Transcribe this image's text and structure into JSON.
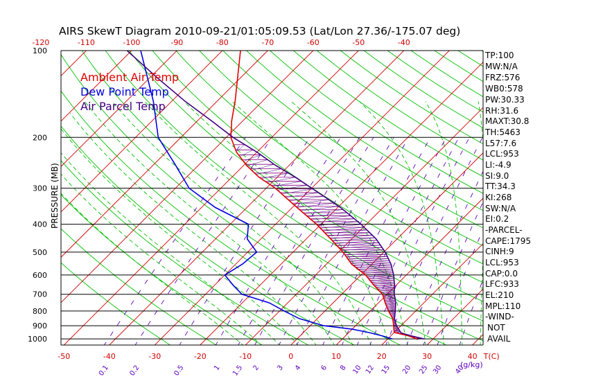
{
  "title": "AIRS SkewT Diagram 2010-09-21/01:05:09.53 (Lat/Lon 27.36/-175.07 deg)",
  "legend": {
    "ambient": "Ambient Air Temp",
    "dewpoint": "Dew Point Temp",
    "parcel": "Air Parcel Temp"
  },
  "colors": {
    "ambient": "#e00000",
    "dewpoint": "#0000e0",
    "parcel": "#400080",
    "dry_adiabat": "#00c000",
    "moist_adiabat": "#00c000",
    "mixing_ratio": "#6000c0",
    "isotherm": "#d00000",
    "isobar": "#000000"
  },
  "stats": [
    "TP:100",
    "MW:N/A",
    "FRZ:576",
    "WB0:578",
    "PW:30.33",
    "RH:31.6",
    "MAXT:30.8",
    "TH:5463",
    "L57:7.6",
    "LCL:953",
    "LI:-4.9",
    "SI:9.0",
    "TT:34.3",
    "KI:268",
    "SW:N/A",
    "EI:0.2",
    "-PARCEL-",
    "CAPE:1795",
    "CINH:9",
    "LCL:953",
    "CAP:0.0",
    "LFC:933",
    "EL:210",
    "MPL:110",
    "-WIND-",
    "NOT",
    "AVAIL"
  ],
  "chart_data": {
    "type": "line",
    "title": "AIRS SkewT Diagram 2010-09-21/01:05:09.53 (Lat/Lon 27.36/-175.07 deg)",
    "ylabel": "PRESSURE (MB)",
    "xlabel": "T(C)",
    "pressure_ticks": [
      100,
      200,
      300,
      400,
      500,
      600,
      700,
      800,
      900,
      1000
    ],
    "pressure_tick_labels": [
      "100",
      "200",
      "300",
      "400",
      "500",
      "600",
      "700",
      "800",
      "900",
      "1000"
    ],
    "bottom_temp_ticks": [
      -50,
      -40,
      -30,
      -20,
      -10,
      0,
      10,
      20,
      30,
      40
    ],
    "bottom_temp_labels": [
      "-50",
      "-40",
      "-30",
      "-20",
      "-10",
      "0",
      "10",
      "20",
      "30",
      "40"
    ],
    "bottom_unit_label": "T(C)",
    "top_temp_ticks": [
      -120,
      -110,
      -100,
      -90,
      -80,
      -70,
      -60,
      -50,
      -40
    ],
    "top_temp_labels": [
      "-120",
      "-110",
      "-100",
      "-90",
      "-80",
      "-70",
      "-60",
      "-50",
      "-40"
    ],
    "mixing_ratios": [
      0.1,
      0.2,
      0.5,
      1,
      1.5,
      2,
      3,
      4,
      6,
      8,
      10,
      12,
      15,
      20,
      25,
      30,
      40
    ],
    "mixing_ratio_labels": [
      "0.1",
      "0.2",
      "0.5",
      "1",
      "1.5",
      "2",
      "3",
      "4",
      "6",
      "8",
      "10",
      "12",
      "15",
      "20",
      "25",
      "30",
      "40"
    ],
    "mixing_ratio_unit": "(g/kg)",
    "xlim_at_1000mb": [
      -52,
      41
    ],
    "ylim": [
      1050,
      100
    ],
    "series": [
      {
        "name": "Ambient Air Temp",
        "color": "#e00000",
        "points": [
          [
            1000,
            26.5
          ],
          [
            975,
            23.8
          ],
          [
            950,
            20.0
          ],
          [
            925,
            19.2
          ],
          [
            900,
            18.4
          ],
          [
            850,
            16.6
          ],
          [
            800,
            14.0
          ],
          [
            750,
            11.5
          ],
          [
            700,
            9.0
          ],
          [
            650,
            5.0
          ],
          [
            600,
            1.0
          ],
          [
            550,
            -4.5
          ],
          [
            500,
            -9.0
          ],
          [
            450,
            -14.6
          ],
          [
            400,
            -21.0
          ],
          [
            350,
            -29.0
          ],
          [
            300,
            -38.0
          ],
          [
            275,
            -44.0
          ],
          [
            250,
            -49.4
          ],
          [
            225,
            -54.5
          ],
          [
            200,
            -59.0
          ],
          [
            175,
            -62.5
          ],
          [
            150,
            -66.0
          ],
          [
            125,
            -70.5
          ],
          [
            100,
            -76.0
          ]
        ]
      },
      {
        "name": "Dew Point Temp",
        "color": "#0000e0",
        "points": [
          [
            1000,
            21.0
          ],
          [
            975,
            18.0
          ],
          [
            950,
            14.4
          ],
          [
            925,
            10.0
          ],
          [
            900,
            3.0
          ],
          [
            850,
            -4.0
          ],
          [
            800,
            -9.0
          ],
          [
            750,
            -14.0
          ],
          [
            700,
            -22.0
          ],
          [
            650,
            -26.0
          ],
          [
            600,
            -30.0
          ],
          [
            550,
            -28.5
          ],
          [
            500,
            -28.0
          ],
          [
            450,
            -33.0
          ],
          [
            400,
            -36.0
          ],
          [
            350,
            -47.0
          ],
          [
            300,
            -57.0
          ],
          [
            250,
            -65.0
          ],
          [
            200,
            -75.0
          ],
          [
            150,
            -84.0
          ],
          [
            100,
            -98.0
          ]
        ]
      },
      {
        "name": "Air Parcel Temp",
        "color": "#400080",
        "points": [
          [
            1000,
            28.0
          ],
          [
            975,
            24.4
          ],
          [
            953,
            21.6
          ],
          [
            900,
            19.0
          ],
          [
            850,
            17.0
          ],
          [
            800,
            15.5
          ],
          [
            750,
            13.8
          ],
          [
            700,
            11.6
          ],
          [
            650,
            9.6
          ],
          [
            600,
            7.2
          ],
          [
            550,
            4.2
          ],
          [
            500,
            0.3
          ],
          [
            450,
            -4.6
          ],
          [
            400,
            -11.2
          ],
          [
            350,
            -19.4
          ],
          [
            300,
            -30.0
          ],
          [
            275,
            -36.0
          ],
          [
            250,
            -43.0
          ],
          [
            225,
            -50.0
          ],
          [
            210,
            -55.0
          ],
          [
            200,
            -58.5
          ],
          [
            175,
            -67.0
          ],
          [
            150,
            -77.0
          ],
          [
            125,
            -88.0
          ],
          [
            100,
            -101.0
          ]
        ]
      }
    ]
  }
}
